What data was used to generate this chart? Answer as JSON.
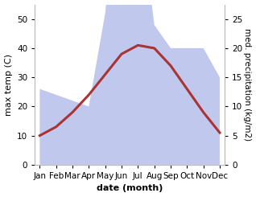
{
  "months": [
    "Jan",
    "Feb",
    "Mar",
    "Apr",
    "May",
    "Jun",
    "Jul",
    "Aug",
    "Sep",
    "Oct",
    "Nov",
    "Dec"
  ],
  "temp": [
    10,
    13,
    18,
    24,
    31,
    38,
    41,
    40,
    34,
    26,
    18,
    11
  ],
  "precip": [
    13,
    12,
    11,
    10,
    26,
    54,
    47,
    24,
    20,
    20,
    20,
    15
  ],
  "temp_color": "#aa3333",
  "precip_fill_color": "#c0c8ee",
  "temp_ylim": [
    0,
    55
  ],
  "precip_ylim": [
    0,
    27.5
  ],
  "temp_yticks": [
    0,
    10,
    20,
    30,
    40,
    50
  ],
  "precip_yticks": [
    0,
    5,
    10,
    15,
    20,
    25
  ],
  "xlabel": "date (month)",
  "ylabel_left": "max temp (C)",
  "ylabel_right": "med. precipitation (kg/m2)",
  "bg_color": "#ffffff",
  "spine_color": "#bbbbbb",
  "label_fontsize": 8,
  "tick_fontsize": 7.5,
  "linewidth": 2.2
}
